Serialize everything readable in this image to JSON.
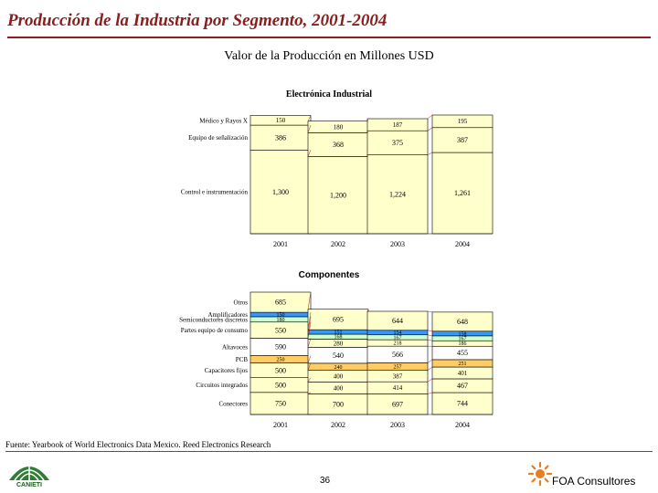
{
  "slide": {
    "title": "Producción de la Industria por Segmento, 2001-2004",
    "subtitle": "Valor de la Producción en Millones USD",
    "source": "Fuente: Yearbook of World Electronics Data Mexico. Reed Electronics Research",
    "page_number": "36",
    "logo_left_text": "CANIETI",
    "logo_right_text": "FOA Consultores",
    "colors": {
      "title": "#8b1d1d",
      "cream": "#ffffcc",
      "orange": "#ffcc66",
      "blue": "#3399ff",
      "gray": "#d9d9d9",
      "lightgreen": "#ccffcc",
      "lightblue": "#ccecff"
    }
  },
  "chart_data": [
    {
      "type": "stacked-bar",
      "title": "Electrónica Industrial",
      "categories": [
        "2001",
        "2002",
        "2003",
        "2004"
      ],
      "series": [
        {
          "name": "Control e instrumentación",
          "values_label": [
            "1,300",
            "1,200",
            "1,224",
            "1,261"
          ],
          "values": [
            1300,
            1200,
            1224,
            1261
          ],
          "color": "#ffffcc"
        },
        {
          "name": "Equipo de señalización",
          "values_label": [
            "386",
            "368",
            "375",
            "387"
          ],
          "values": [
            386,
            368,
            375,
            387
          ],
          "color": "#ffffcc"
        },
        {
          "name": "Médico y Rayos X",
          "values_label": [
            "150",
            "180",
            "187",
            "195"
          ],
          "values": [
            150,
            180,
            187,
            195
          ],
          "color": "#ffffcc"
        }
      ]
    },
    {
      "type": "stacked-bar",
      "title": "Componentes",
      "categories": [
        "2001",
        "2002",
        "2003",
        "2004"
      ],
      "series": [
        {
          "name": "Conectores",
          "values_label": [
            "750",
            "700",
            "697",
            "744"
          ],
          "values": [
            750,
            700,
            697,
            744
          ],
          "color": "#ffffcc"
        },
        {
          "name": "Circuitos integrados",
          "values_label": [
            "500",
            "400",
            "414",
            "467"
          ],
          "values": [
            500,
            400,
            414,
            467
          ],
          "color": "#ffffcc"
        },
        {
          "name": "Capacitores fijos",
          "values_label": [
            "500",
            "400",
            "387",
            "401"
          ],
          "values": [
            500,
            400,
            387,
            401
          ],
          "color": "#ffffcc"
        },
        {
          "name": "PCB",
          "values_label": [
            "250",
            "240",
            "257",
            "251"
          ],
          "values": [
            250,
            240,
            257,
            251
          ],
          "color": "#ffcc66"
        },
        {
          "name": "Altavoces",
          "values_label": [
            "590",
            "540",
            "566",
            "455"
          ],
          "values": [
            590,
            540,
            566,
            455
          ],
          "color": "#ffffff"
        },
        {
          "name": "Partes equipo de consumo",
          "values_label": [
            "550",
            "280",
            "218",
            "186"
          ],
          "values": [
            550,
            280,
            218,
            186
          ],
          "color": "#ffffcc"
        },
        {
          "name": "Semiconductores discretos",
          "values_label": [
            "180",
            "168",
            "167",
            "167"
          ],
          "values": [
            180,
            168,
            167,
            167
          ],
          "color": "#ccffcc"
        },
        {
          "name": "Amplificadores",
          "values_label": [
            "150",
            "151",
            "154",
            "158"
          ],
          "values": [
            150,
            151,
            154,
            158
          ],
          "color": "#3399ff"
        },
        {
          "name": "Otros",
          "values_label": [
            "685",
            "695",
            "644",
            "648"
          ],
          "values": [
            685,
            695,
            644,
            648
          ],
          "color": "#ffffcc"
        }
      ]
    }
  ]
}
